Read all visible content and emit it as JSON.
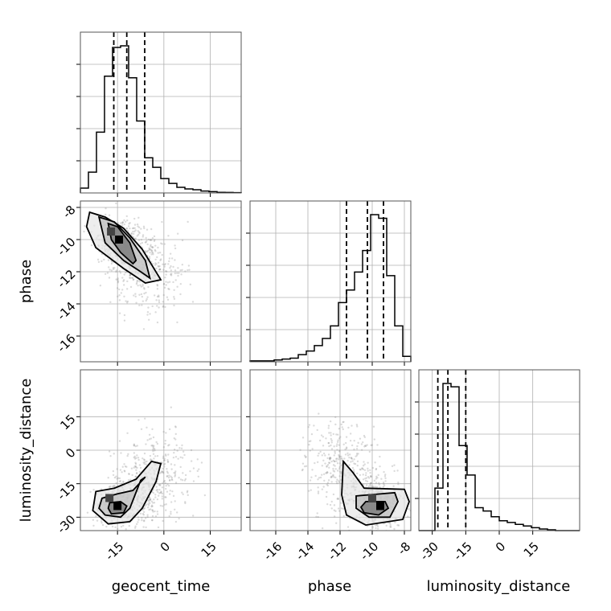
{
  "chart_data": {
    "type": "corner",
    "parameters": [
      "geocent_time",
      "phase",
      "luminosity_distance"
    ],
    "axis_labels": {
      "geocent_time": "geocent_time",
      "phase": "phase",
      "luminosity_distance": "luminosity_distance"
    },
    "ranges": {
      "geocent_time": [
        -27,
        25
      ],
      "phase": [
        -17.6,
        -7.6
      ],
      "luminosity_distance": [
        -36,
        36
      ]
    },
    "ticks": {
      "geocent_time": [
        -15,
        0,
        15
      ],
      "phase": [
        -16,
        -14,
        -12,
        -10,
        -8
      ],
      "luminosity_distance": [
        -30,
        -15,
        0,
        15
      ]
    },
    "grid": true,
    "histograms": {
      "geocent_time": {
        "bins": [
          -27,
          -24.4,
          -21.8,
          -19.2,
          -16.6,
          -14,
          -11.4,
          -8.8,
          -6.2,
          -3.6,
          -1,
          1.6,
          4.2,
          6.8,
          9.4,
          12,
          14.6,
          17.2,
          19.8,
          22.4,
          25
        ],
        "counts": [
          0.03,
          0.13,
          0.38,
          0.73,
          0.91,
          0.92,
          0.72,
          0.45,
          0.22,
          0.16,
          0.09,
          0.06,
          0.035,
          0.025,
          0.02,
          0.012,
          0.008,
          0.004,
          0.003,
          0.002
        ],
        "quantiles": [
          -16.2,
          -12,
          -6.2
        ]
      },
      "phase": {
        "bins": [
          -17.6,
          -17.1,
          -16.6,
          -16.1,
          -15.6,
          -15.1,
          -14.6,
          -14.1,
          -13.6,
          -13.1,
          -12.6,
          -12.1,
          -11.6,
          -11.1,
          -10.6,
          -10.1,
          -9.6,
          -9.1,
          -8.6,
          -8.1,
          -7.6
        ],
        "counts": [
          0.005,
          0.005,
          0.005,
          0.01,
          0.015,
          0.02,
          0.04,
          0.06,
          0.09,
          0.13,
          0.2,
          0.33,
          0.4,
          0.5,
          0.62,
          0.82,
          0.8,
          0.48,
          0.2,
          0.03
        ],
        "quantiles": [
          -11.6,
          -10.3,
          -9.3
        ]
      },
      "luminosity_distance": {
        "bins": [
          -36,
          -32.4,
          -28.8,
          -25.2,
          -21.6,
          -18,
          -14.4,
          -10.8,
          -7.2,
          -3.6,
          0,
          3.6,
          7.2,
          10.8,
          14.4,
          18,
          21.6,
          25.2,
          28.8,
          32.4,
          36
        ],
        "counts": [
          0,
          0,
          0.26,
          0.9,
          0.88,
          0.52,
          0.34,
          0.14,
          0.12,
          0.085,
          0.06,
          0.05,
          0.038,
          0.028,
          0.018,
          0.01,
          0.005,
          0,
          0,
          0
        ],
        "quantiles": [
          -27.5,
          -23,
          -15
        ]
      }
    },
    "joint": [
      {
        "x": "geocent_time",
        "y": "phase",
        "cluster_centers": [
          [
            -14.5,
            -10.0
          ],
          [
            -10,
            -11.0
          ],
          [
            -5,
            -12.2
          ]
        ],
        "contours": [
          [
            [
              -18,
              -9.0
            ],
            [
              -15,
              -9.2
            ],
            [
              -11,
              -10.2
            ],
            [
              -9,
              -11.3
            ],
            [
              -10,
              -11.5
            ],
            [
              -14,
              -10.8
            ],
            [
              -17,
              -10.0
            ]
          ],
          [
            [
              -21,
              -8.6
            ],
            [
              -16,
              -8.9
            ],
            [
              -11,
              -9.9
            ],
            [
              -6,
              -11.3
            ],
            [
              -4.5,
              -12.4
            ],
            [
              -7.5,
              -12.0
            ],
            [
              -13,
              -11.3
            ],
            [
              -19,
              -10.2
            ]
          ],
          [
            [
              -24,
              -8.3
            ],
            [
              -19,
              -8.6
            ],
            [
              -13,
              -9.3
            ],
            [
              -7,
              -10.6
            ],
            [
              -1,
              -12.5
            ],
            [
              -6,
              -12.7
            ],
            [
              -13,
              -11.8
            ],
            [
              -22,
              -10.5
            ],
            [
              -25,
              -9.2
            ]
          ]
        ]
      },
      {
        "x": "geocent_time",
        "y": "luminosity_distance",
        "cluster_centers": [
          [
            -15,
            -25
          ],
          [
            -8,
            -20
          ],
          [
            -2,
            -8
          ]
        ],
        "contours": [
          [
            [
              -17.5,
              -23.5
            ],
            [
              -14,
              -23
            ],
            [
              -12,
              -25
            ],
            [
              -13,
              -28
            ],
            [
              -17,
              -28.5
            ],
            [
              -18,
              -26
            ]
          ],
          [
            [
              -20,
              -21.5
            ],
            [
              -15,
              -19.5
            ],
            [
              -10,
              -18
            ],
            [
              -6,
              -12
            ],
            [
              -7.5,
              -13.5
            ],
            [
              -11,
              -26
            ],
            [
              -14,
              -30
            ],
            [
              -19,
              -29
            ],
            [
              -21,
              -26
            ]
          ],
          [
            [
              -22,
              -18.5
            ],
            [
              -16,
              -17
            ],
            [
              -9,
              -13
            ],
            [
              -4,
              -5
            ],
            [
              -1,
              -6
            ],
            [
              -2.5,
              -14
            ],
            [
              -7,
              -26
            ],
            [
              -11,
              -32
            ],
            [
              -18,
              -33
            ],
            [
              -23,
              -27
            ]
          ]
        ]
      },
      {
        "x": "phase",
        "y": "luminosity_distance",
        "cluster_centers": [
          [
            -9.5,
            -25
          ],
          [
            -10.5,
            -20
          ],
          [
            -12,
            -5
          ]
        ],
        "contours": [
          [
            [
              -10.4,
              -23
            ],
            [
              -9.2,
              -23
            ],
            [
              -9.0,
              -26
            ],
            [
              -9.6,
              -29
            ],
            [
              -10.5,
              -28
            ],
            [
              -10.7,
              -25.5
            ]
          ],
          [
            [
              -11.0,
              -20.5
            ],
            [
              -8.6,
              -19
            ],
            [
              -8.4,
              -23
            ],
            [
              -8.9,
              -30
            ],
            [
              -10.2,
              -30
            ],
            [
              -11,
              -26
            ]
          ],
          [
            [
              -11.8,
              -5
            ],
            [
              -11.2,
              -10
            ],
            [
              -10.5,
              -17
            ],
            [
              -8.0,
              -17.5
            ],
            [
              -7.7,
              -23
            ],
            [
              -8.1,
              -31
            ],
            [
              -10.4,
              -33.5
            ],
            [
              -11.6,
              -29
            ],
            [
              -11.9,
              -20
            ]
          ]
        ]
      }
    ]
  }
}
